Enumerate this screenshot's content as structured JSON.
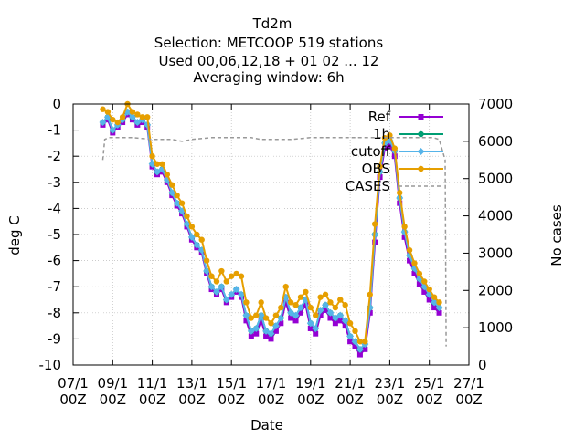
{
  "chart_data": {
    "type": "line",
    "title_lines": [
      "Td2m",
      "Selection: METCOOP    519 stations",
      "Used  00,06,12,18 + 01 02 ... 12",
      "Averaging window:  6h"
    ],
    "xlabel": "Date",
    "ylabel": "deg C",
    "y2label": "No cases",
    "xlim": [
      7,
      27
    ],
    "ylim": [
      -10,
      0
    ],
    "y2lim": [
      0,
      7000
    ],
    "x_ticks": [
      7,
      9,
      11,
      13,
      15,
      17,
      19,
      21,
      23,
      25,
      27
    ],
    "x_tick_labels": [
      [
        "07/1",
        "00Z"
      ],
      [
        "09/1",
        "00Z"
      ],
      [
        "11/1",
        "00Z"
      ],
      [
        "13/1",
        "00Z"
      ],
      [
        "15/1",
        "00Z"
      ],
      [
        "17/1",
        "00Z"
      ],
      [
        "19/1",
        "00Z"
      ],
      [
        "21/1",
        "00Z"
      ],
      [
        "23/1",
        "00Z"
      ],
      [
        "25/1",
        "00Z"
      ],
      [
        "27/1",
        "00Z"
      ]
    ],
    "y_ticks": [
      0,
      -1,
      -2,
      -3,
      -4,
      -5,
      -6,
      -7,
      -8,
      -9,
      -10
    ],
    "y_tick_labels": [
      "0",
      "-1",
      "-2",
      "-3",
      "-4",
      "-5",
      "-6",
      "-7",
      "-8",
      "-9",
      "-10"
    ],
    "y2_ticks": [
      0,
      1000,
      2000,
      3000,
      4000,
      5000,
      6000,
      7000
    ],
    "y2_tick_labels": [
      "0",
      "1000",
      "2000",
      "3000",
      "4000",
      "5000",
      "6000",
      "7000"
    ],
    "grid": true,
    "legend_position": "top-right",
    "x": [
      8.5,
      8.75,
      9.0,
      9.25,
      9.5,
      9.75,
      10.0,
      10.25,
      10.5,
      10.75,
      11.0,
      11.25,
      11.5,
      11.75,
      12.0,
      12.25,
      12.5,
      12.75,
      13.0,
      13.25,
      13.5,
      13.75,
      14.0,
      14.25,
      14.5,
      14.75,
      15.0,
      15.25,
      15.5,
      15.75,
      16.0,
      16.25,
      16.5,
      16.75,
      17.0,
      17.25,
      17.5,
      17.75,
      18.0,
      18.25,
      18.5,
      18.75,
      19.0,
      19.25,
      19.5,
      19.75,
      20.0,
      20.25,
      20.5,
      20.75,
      21.0,
      21.25,
      21.5,
      21.75,
      22.0,
      22.25,
      22.5,
      22.75,
      23.0,
      23.25,
      23.5,
      23.75,
      24.0,
      24.25,
      24.5,
      24.75,
      25.0,
      25.25,
      25.5
    ],
    "series": [
      {
        "name": "Ref",
        "color": "#9400d3",
        "marker": "square",
        "values": [
          -0.8,
          -0.6,
          -1.1,
          -0.9,
          -0.7,
          -0.4,
          -0.6,
          -0.8,
          -0.7,
          -0.9,
          -2.4,
          -2.7,
          -2.6,
          -3.0,
          -3.5,
          -3.9,
          -4.2,
          -4.7,
          -5.2,
          -5.5,
          -5.7,
          -6.5,
          -7.1,
          -7.3,
          -7.1,
          -7.6,
          -7.4,
          -7.2,
          -7.4,
          -8.3,
          -8.9,
          -8.8,
          -8.3,
          -8.9,
          -9.0,
          -8.7,
          -8.4,
          -7.6,
          -8.2,
          -8.3,
          -8.0,
          -7.7,
          -8.6,
          -8.8,
          -8.1,
          -7.9,
          -8.2,
          -8.4,
          -8.3,
          -8.5,
          -9.1,
          -9.3,
          -9.6,
          -9.4,
          -8.0,
          -5.3,
          -2.8,
          -1.7,
          -1.6,
          -2.0,
          -3.8,
          -5.1,
          -6.0,
          -6.5,
          -6.9,
          -7.2,
          -7.5,
          -7.8,
          -8.0
        ]
      },
      {
        "name": "1h",
        "color": "#009e73",
        "marker": "circle",
        "values": [
          -0.7,
          -0.5,
          -1.0,
          -0.8,
          -0.6,
          -0.3,
          -0.5,
          -0.7,
          -0.6,
          -0.8,
          -2.3,
          -2.6,
          -2.5,
          -2.9,
          -3.4,
          -3.8,
          -4.1,
          -4.6,
          -5.1,
          -5.4,
          -5.6,
          -6.4,
          -7.0,
          -7.2,
          -7.0,
          -7.5,
          -7.3,
          -7.1,
          -7.3,
          -8.1,
          -8.7,
          -8.6,
          -8.1,
          -8.7,
          -8.8,
          -8.5,
          -8.2,
          -7.4,
          -8.0,
          -8.1,
          -7.8,
          -7.5,
          -8.4,
          -8.6,
          -7.9,
          -7.7,
          -8.0,
          -8.2,
          -8.1,
          -8.3,
          -8.9,
          -9.1,
          -9.4,
          -9.2,
          -7.8,
          -5.0,
          -2.6,
          -1.5,
          -1.4,
          -1.8,
          -3.6,
          -4.9,
          -5.8,
          -6.3,
          -6.7,
          -7.0,
          -7.3,
          -7.6,
          -7.8
        ]
      },
      {
        "name": "cutoff",
        "color": "#56b4e9",
        "marker": "diamond",
        "values": [
          -0.7,
          -0.5,
          -1.0,
          -0.8,
          -0.6,
          -0.3,
          -0.5,
          -0.7,
          -0.6,
          -0.8,
          -2.3,
          -2.6,
          -2.5,
          -2.9,
          -3.4,
          -3.8,
          -4.1,
          -4.6,
          -5.1,
          -5.4,
          -5.6,
          -6.4,
          -7.0,
          -7.2,
          -7.0,
          -7.5,
          -7.3,
          -7.1,
          -7.3,
          -8.1,
          -8.7,
          -8.6,
          -8.1,
          -8.7,
          -8.8,
          -8.5,
          -8.2,
          -7.4,
          -8.0,
          -8.1,
          -7.8,
          -7.5,
          -8.4,
          -8.6,
          -7.9,
          -7.7,
          -8.0,
          -8.2,
          -8.1,
          -8.3,
          -8.9,
          -9.1,
          -9.4,
          -9.2,
          -7.8,
          -5.0,
          -2.6,
          -1.5,
          -1.4,
          -1.8,
          -3.6,
          -4.9,
          -5.8,
          -6.3,
          -6.7,
          -7.0,
          -7.3,
          -7.6,
          -7.8
        ]
      },
      {
        "name": "OBS",
        "color": "#e69f00",
        "marker": "circle",
        "values": [
          -0.2,
          -0.3,
          -0.6,
          -0.7,
          -0.5,
          0.0,
          -0.3,
          -0.4,
          -0.5,
          -0.5,
          -2.0,
          -2.3,
          -2.3,
          -2.7,
          -3.1,
          -3.5,
          -3.8,
          -4.3,
          -4.7,
          -5.0,
          -5.2,
          -6.0,
          -6.6,
          -6.8,
          -6.4,
          -6.8,
          -6.6,
          -6.5,
          -6.6,
          -7.6,
          -8.2,
          -8.1,
          -7.6,
          -8.2,
          -8.4,
          -8.1,
          -7.8,
          -7.0,
          -7.6,
          -7.7,
          -7.4,
          -7.2,
          -7.8,
          -8.1,
          -7.4,
          -7.3,
          -7.6,
          -7.8,
          -7.5,
          -7.7,
          -8.4,
          -8.7,
          -9.1,
          -9.1,
          -7.3,
          -4.6,
          -2.4,
          -1.3,
          -1.2,
          -1.7,
          -3.4,
          -4.7,
          -5.6,
          -6.1,
          -6.5,
          -6.8,
          -7.1,
          -7.4,
          -7.6
        ]
      },
      {
        "name": "CASES",
        "color": "#999999",
        "dashed": true,
        "axis": "y2",
        "x": [
          8.5,
          8.6,
          8.8,
          9.5,
          10.0,
          11.0,
          12.0,
          12.5,
          13.0,
          14.0,
          15.0,
          16.0,
          16.5,
          17.0,
          18.0,
          19.0,
          20.0,
          21.0,
          22.0,
          23.0,
          24.0,
          24.8,
          25.2,
          25.5,
          25.8,
          25.85
        ],
        "values": [
          5500,
          6050,
          6100,
          6100,
          6100,
          6050,
          6050,
          6000,
          6050,
          6100,
          6100,
          6100,
          6050,
          6050,
          6050,
          6100,
          6100,
          6100,
          6100,
          6100,
          6100,
          6100,
          6100,
          6050,
          5500,
          500
        ]
      }
    ]
  }
}
